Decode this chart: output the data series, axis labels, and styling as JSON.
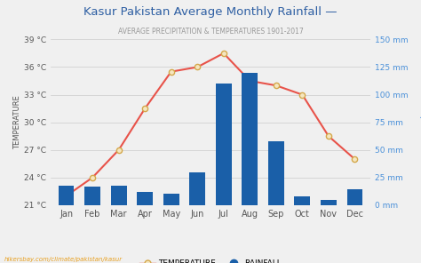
{
  "title": "Kasur Pakistan Average Monthly Rainfall —",
  "subtitle": "AVERAGE PRECIPITATION & TEMPERATURES 1901-2017",
  "months": [
    "Jan",
    "Feb",
    "Mar",
    "Apr",
    "May",
    "Jun",
    "Jul",
    "Aug",
    "Sep",
    "Oct",
    "Nov",
    "Dec"
  ],
  "temperature": [
    22,
    24,
    27,
    31.5,
    35.5,
    36,
    37.5,
    34.5,
    34,
    33,
    28.5,
    26
  ],
  "rainfall_mm": [
    18,
    17,
    18,
    12,
    10,
    30,
    110,
    120,
    58,
    8,
    5,
    14
  ],
  "temp_ylim": [
    21,
    39
  ],
  "temp_yticks": [
    21,
    24,
    27,
    30,
    33,
    36,
    39
  ],
  "temp_ytick_labels": [
    "21 °C",
    "24 °C",
    "27 °C",
    "30 °C",
    "33 °C",
    "36 °C",
    "39 °C"
  ],
  "rain_ylim": [
    0,
    150
  ],
  "rain_yticks": [
    0,
    25,
    50,
    75,
    100,
    125,
    150
  ],
  "rain_ytick_labels": [
    "0 mm",
    "25 mm",
    "50 mm",
    "75 mm",
    "100 mm",
    "125 mm",
    "150 mm"
  ],
  "bar_color": "#1a5fa8",
  "line_color": "#e8534a",
  "marker_face": "#f5e6c0",
  "marker_edge": "#d4a84b",
  "title_color": "#2e5fa3",
  "subtitle_color": "#999999",
  "bg_color": "#f0f0f0",
  "right_axis_color": "#4a90d9",
  "left_axis_color": "#555555",
  "watermark": "hikersbay.com/climate/pakistan/kasur",
  "watermark_color": "#e8a020",
  "left_label": "TEMPERATURE",
  "right_label": "Precipitation"
}
